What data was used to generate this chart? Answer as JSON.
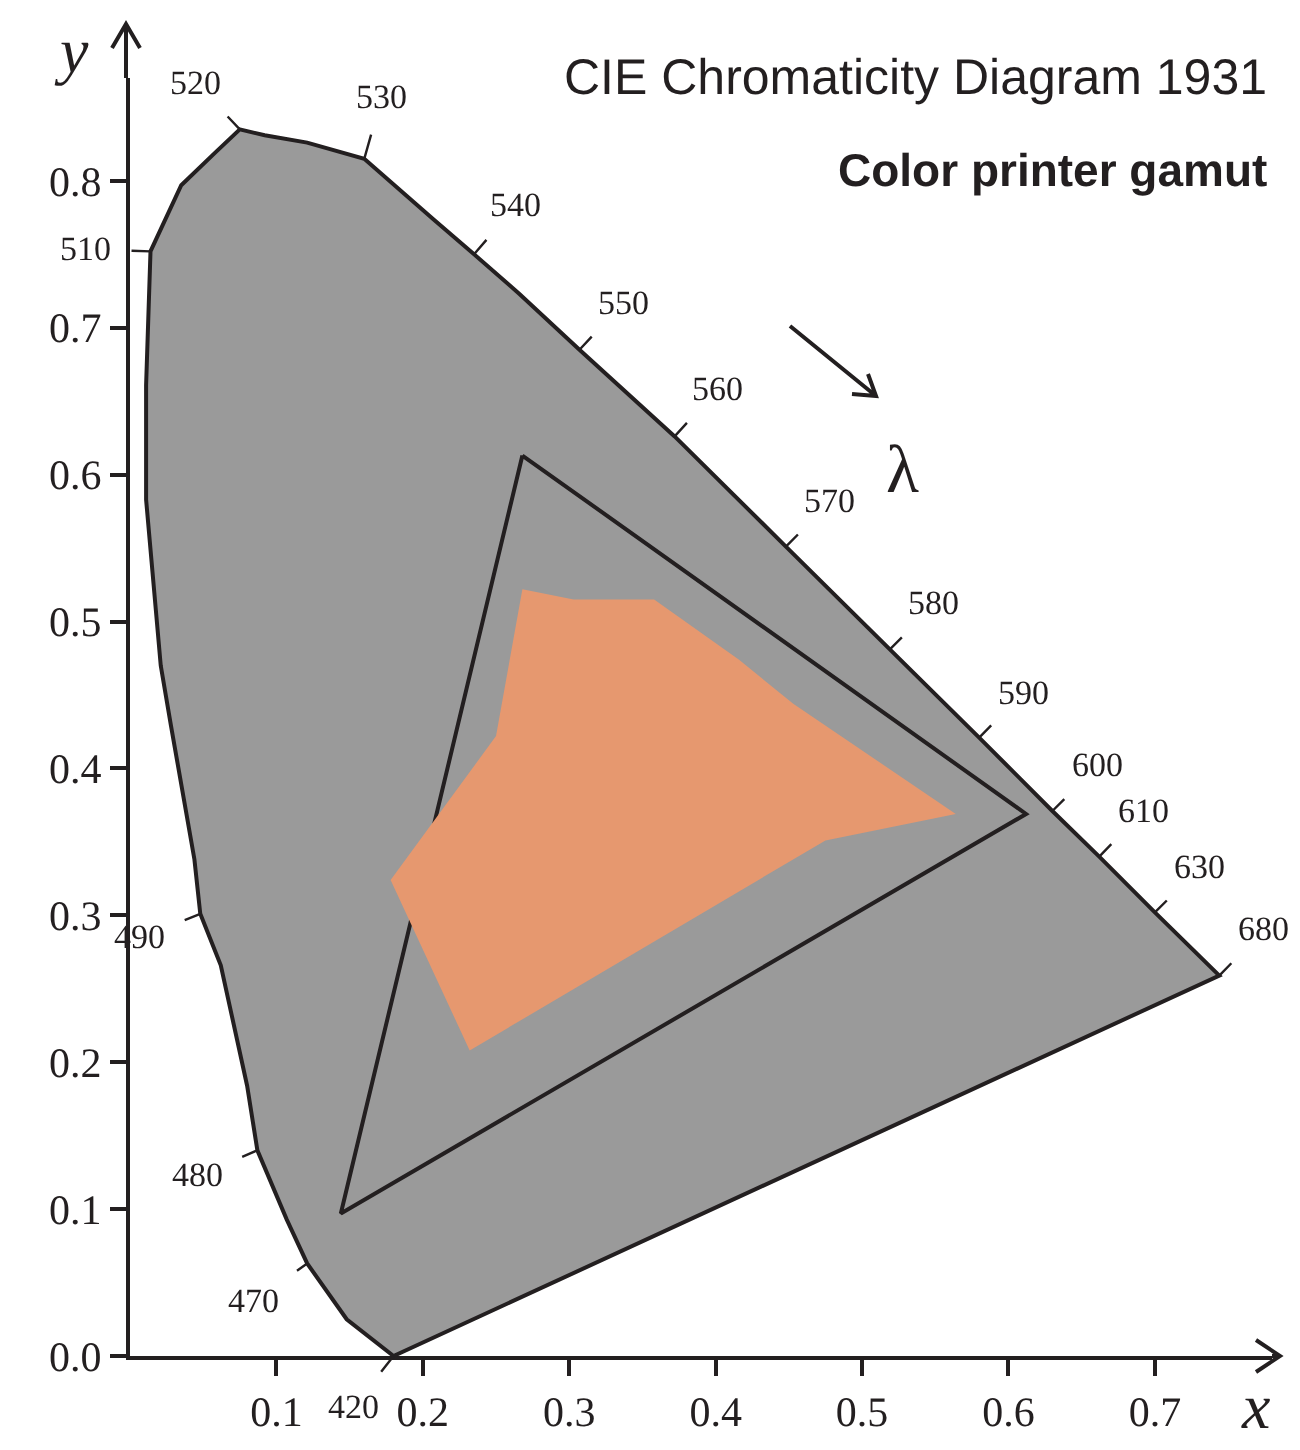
{
  "chart_data": {
    "type": "area",
    "title": "CIE Chromaticity Diagram 1931",
    "subtitle": "Color printer gamut",
    "xlabel": "x",
    "ylabel": "y",
    "xlim": [
      0,
      0.78
    ],
    "ylim": [
      0,
      0.87
    ],
    "xticks": [
      0.1,
      0.2,
      0.3,
      0.4,
      0.5,
      0.6,
      0.7
    ],
    "yticks": [
      {
        "value": 0,
        "label": "0.0"
      },
      0.1,
      0.2,
      0.3,
      0.4,
      0.5,
      0.6,
      0.7,
      0.8
    ],
    "grid": false,
    "legend": false,
    "series": [
      {
        "color": "#9a9a9a",
        "line_style": "solid",
        "x": [
          0.18,
          0.148,
          0.121,
          0.107,
          0.087,
          0.08,
          0.062,
          0.048,
          0.044,
          0.028,
          0.021,
          0.011,
          0.011,
          0.014,
          0.035,
          0.058,
          0.075,
          0.092,
          0.121,
          0.16,
          0.207,
          0.235,
          0.266,
          0.307,
          0.372,
          0.448,
          0.519,
          0.58,
          0.63,
          0.662,
          0.7,
          0.744,
          0.18
        ],
        "values": [
          0.0,
          0.025,
          0.063,
          0.093,
          0.14,
          0.184,
          0.266,
          0.301,
          0.338,
          0.429,
          0.47,
          0.583,
          0.661,
          0.752,
          0.797,
          0.819,
          0.835,
          0.831,
          0.826,
          0.815,
          0.774,
          0.75,
          0.723,
          0.685,
          0.626,
          0.551,
          0.481,
          0.421,
          0.371,
          0.34,
          0.302,
          0.259,
          0.0
        ]
      },
      {
        "type": "area",
        "color": "#9a9a9a",
        "line_style": "solid",
        "x": [
          0.268,
          0.612,
          0.144,
          0.268
        ],
        "values": [
          0.613,
          0.369,
          0.097,
          0.613
        ]
      },
      {
        "type": "area",
        "color": "#e6986f",
        "x": [
          0.268,
          0.303,
          0.358,
          0.416,
          0.453,
          0.564,
          0.475,
          0.232,
          0.178,
          0.25,
          0.268
        ],
        "values": [
          0.522,
          0.515,
          0.515,
          0.474,
          0.444,
          0.369,
          0.351,
          0.208,
          0.324,
          0.422,
          0.522
        ]
      }
    ],
    "annotations": [
      {
        "text": "520",
        "x": 0.075,
        "y": 0.835
      },
      {
        "text": "530",
        "x": 0.16,
        "y": 0.815
      },
      {
        "text": "540",
        "x": 0.235,
        "y": 0.75
      },
      {
        "text": "550",
        "x": 0.307,
        "y": 0.685
      },
      {
        "text": "560",
        "x": 0.372,
        "y": 0.626
      },
      {
        "text": "570",
        "x": 0.448,
        "y": 0.551
      },
      {
        "text": "580",
        "x": 0.519,
        "y": 0.481
      },
      {
        "text": "590",
        "x": 0.58,
        "y": 0.421
      },
      {
        "text": "600",
        "x": 0.63,
        "y": 0.371
      },
      {
        "text": "610",
        "x": 0.662,
        "y": 0.34
      },
      {
        "text": "630",
        "x": 0.7,
        "y": 0.302
      },
      {
        "text": "680",
        "x": 0.744,
        "y": 0.259
      },
      {
        "text": "510",
        "x": 0.014,
        "y": 0.752
      },
      {
        "text": "490",
        "x": 0.048,
        "y": 0.301
      },
      {
        "text": "480",
        "x": 0.087,
        "y": 0.14
      },
      {
        "text": "470",
        "x": 0.121,
        "y": 0.063
      },
      {
        "text": "420",
        "x": 0.18,
        "y": 0.0
      },
      "λ"
    ]
  }
}
